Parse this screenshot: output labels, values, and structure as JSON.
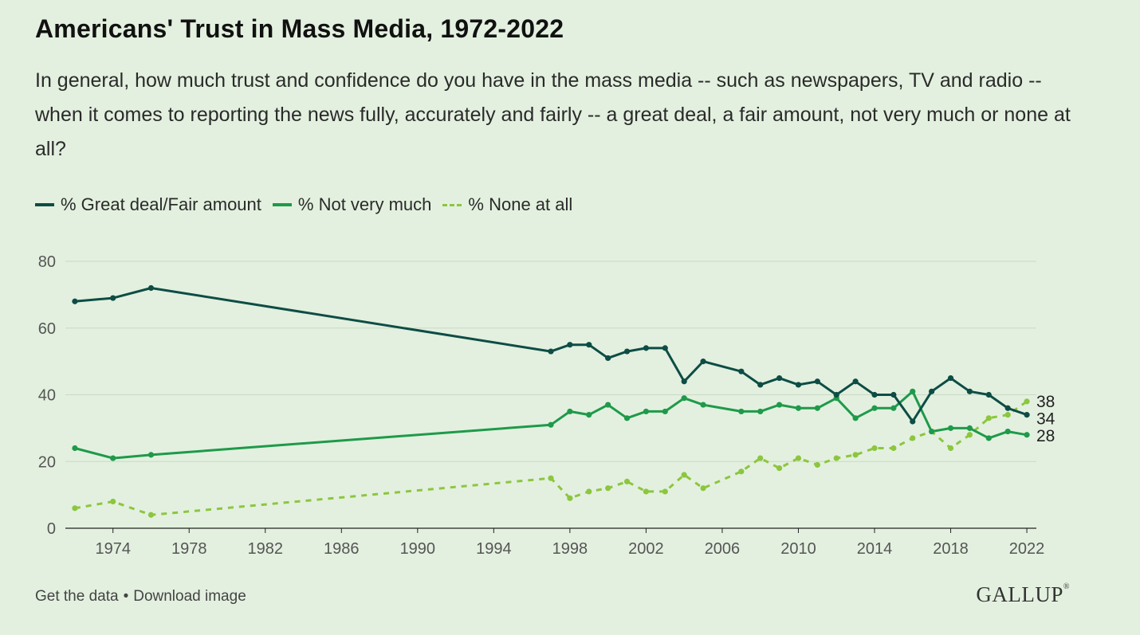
{
  "header": {
    "title": "Americans' Trust in Mass Media, 1972-2022",
    "question": "In general, how much trust and confidence do you have in the mass media -- such as newspapers, TV and radio -- when it comes to reporting the news fully, accurately and fairly -- a great deal, a fair amount, not very much or none at all?"
  },
  "footer": {
    "get_data": "Get the data",
    "separator": "•",
    "download": "Download image",
    "logo": "GALLUP"
  },
  "chart_data": {
    "type": "line",
    "title": "Americans' Trust in Mass Media, 1972-2022",
    "xlabel": "",
    "ylabel": "",
    "xlim": [
      1972,
      2022
    ],
    "ylim": [
      0,
      80
    ],
    "yticks": [
      0,
      20,
      40,
      60,
      80
    ],
    "xticks": [
      1974,
      1978,
      1982,
      1986,
      1990,
      1994,
      1998,
      2002,
      2006,
      2010,
      2014,
      2018,
      2022
    ],
    "grid": "horizontal",
    "legend_position": "top-left",
    "end_labels": [
      "38",
      "34",
      "28"
    ],
    "series": [
      {
        "name": "% Great deal/Fair amount",
        "color": "#0d4d45",
        "style": "solid",
        "x": [
          1972,
          1974,
          1976,
          1997,
          1998,
          1999,
          2000,
          2001,
          2002,
          2003,
          2004,
          2005,
          2007,
          2008,
          2009,
          2010,
          2011,
          2012,
          2013,
          2014,
          2015,
          2016,
          2017,
          2018,
          2019,
          2020,
          2021,
          2022
        ],
        "values": [
          68,
          69,
          72,
          53,
          55,
          55,
          51,
          53,
          54,
          54,
          44,
          50,
          47,
          43,
          45,
          43,
          44,
          40,
          44,
          40,
          40,
          32,
          41,
          45,
          41,
          40,
          36,
          34
        ]
      },
      {
        "name": "% Not very much",
        "color": "#1e9a4a",
        "style": "solid",
        "x": [
          1972,
          1974,
          1976,
          1997,
          1998,
          1999,
          2000,
          2001,
          2002,
          2003,
          2004,
          2005,
          2007,
          2008,
          2009,
          2010,
          2011,
          2012,
          2013,
          2014,
          2015,
          2016,
          2017,
          2018,
          2019,
          2020,
          2021,
          2022
        ],
        "values": [
          24,
          21,
          22,
          31,
          35,
          34,
          37,
          33,
          35,
          35,
          39,
          37,
          35,
          35,
          37,
          36,
          36,
          39,
          33,
          36,
          36,
          41,
          29,
          30,
          30,
          27,
          29,
          28
        ]
      },
      {
        "name": "% None at all",
        "color": "#8cc63f",
        "style": "dashed",
        "x": [
          1972,
          1974,
          1976,
          1997,
          1998,
          1999,
          2000,
          2001,
          2002,
          2003,
          2004,
          2005,
          2007,
          2008,
          2009,
          2010,
          2011,
          2012,
          2013,
          2014,
          2015,
          2016,
          2017,
          2018,
          2019,
          2020,
          2021,
          2022
        ],
        "values": [
          6,
          8,
          4,
          15,
          9,
          11,
          12,
          14,
          11,
          11,
          16,
          12,
          17,
          21,
          18,
          21,
          19,
          21,
          22,
          24,
          24,
          27,
          29,
          24,
          28,
          33,
          34,
          38
        ]
      }
    ]
  },
  "colors": {
    "background": "#e3f0df",
    "gridline": "#c9d9c5",
    "axis": "#222222"
  }
}
